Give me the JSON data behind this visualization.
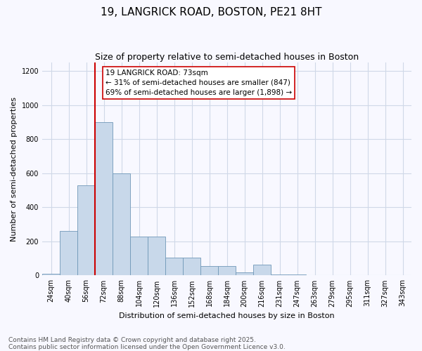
{
  "title1": "19, LANGRICK ROAD, BOSTON, PE21 8HT",
  "title2": "Size of property relative to semi-detached houses in Boston",
  "xlabel": "Distribution of semi-detached houses by size in Boston",
  "ylabel": "Number of semi-detached properties",
  "categories": [
    "24sqm",
    "40sqm",
    "56sqm",
    "72sqm",
    "88sqm",
    "104sqm",
    "120sqm",
    "136sqm",
    "152sqm",
    "168sqm",
    "184sqm",
    "200sqm",
    "216sqm",
    "231sqm",
    "247sqm",
    "263sqm",
    "279sqm",
    "295sqm",
    "311sqm",
    "327sqm",
    "343sqm"
  ],
  "values": [
    10,
    260,
    530,
    900,
    600,
    230,
    230,
    105,
    105,
    55,
    55,
    20,
    65,
    5,
    5,
    0,
    0,
    0,
    0,
    0,
    0
  ],
  "bar_color": "#c8d8ea",
  "bar_edge_color": "#7098b8",
  "vline_color": "#cc0000",
  "vline_x": 2.5,
  "annotation_text": "19 LANGRICK ROAD: 73sqm\n← 31% of semi-detached houses are smaller (847)\n69% of semi-detached houses are larger (1,898) →",
  "annotation_box_color": "#ffffff",
  "annotation_box_edge_color": "#cc0000",
  "ylim": [
    0,
    1250
  ],
  "yticks": [
    0,
    200,
    400,
    600,
    800,
    1000,
    1200
  ],
  "grid_color": "#d0d8e8",
  "background_color": "#f8f8ff",
  "footer1": "Contains HM Land Registry data © Crown copyright and database right 2025.",
  "footer2": "Contains public sector information licensed under the Open Government Licence v3.0.",
  "title_fontsize": 11,
  "subtitle_fontsize": 9,
  "axis_label_fontsize": 8,
  "tick_fontsize": 7,
  "annotation_fontsize": 7.5,
  "footer_fontsize": 6.5
}
